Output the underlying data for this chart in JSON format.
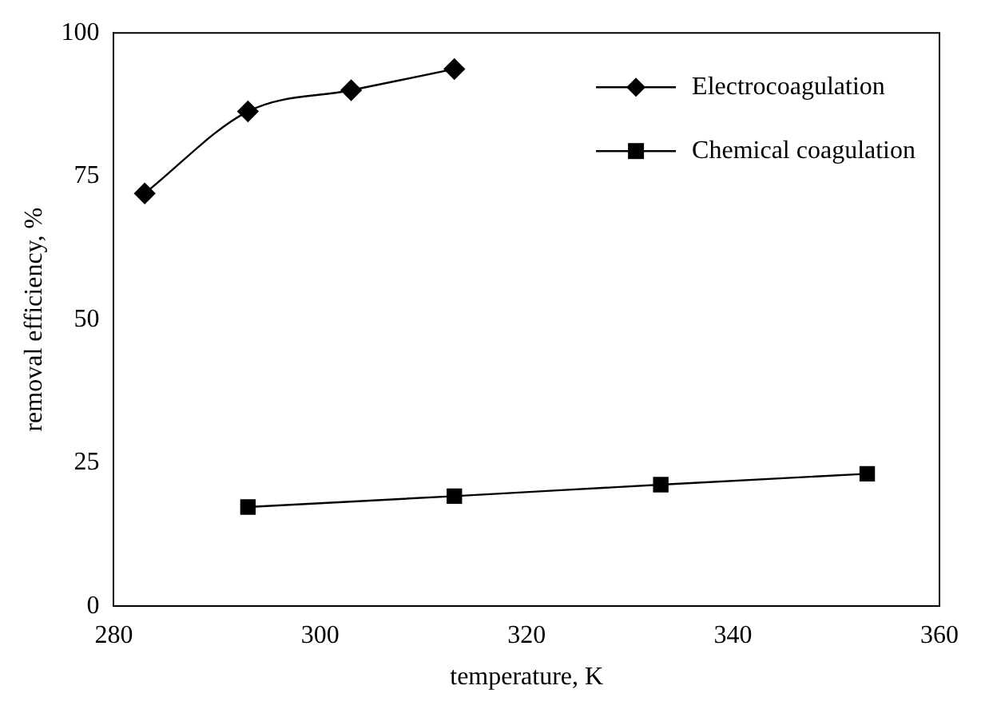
{
  "chart_data": {
    "type": "line",
    "xlabel": "temperature, K",
    "ylabel": "removal efficiency, %",
    "xlim": [
      280,
      360
    ],
    "xticks": [
      280,
      300,
      320,
      340,
      360
    ],
    "ylim": [
      0,
      100
    ],
    "yticks": [
      0,
      25,
      50,
      75,
      100
    ],
    "grid": false,
    "legend": "top right",
    "series": [
      {
        "name": "Electrocoagulation",
        "color": "#000000",
        "marker": "diamond",
        "x": [
          283,
          293,
          303,
          313
        ],
        "values": [
          72,
          86.3,
          90,
          93.7
        ]
      },
      {
        "name": "Chemical coagulation",
        "color": "#000000",
        "marker": "square",
        "x": [
          293,
          313,
          333,
          353
        ],
        "values": [
          17.3,
          19.2,
          21.2,
          23.1
        ]
      }
    ]
  }
}
